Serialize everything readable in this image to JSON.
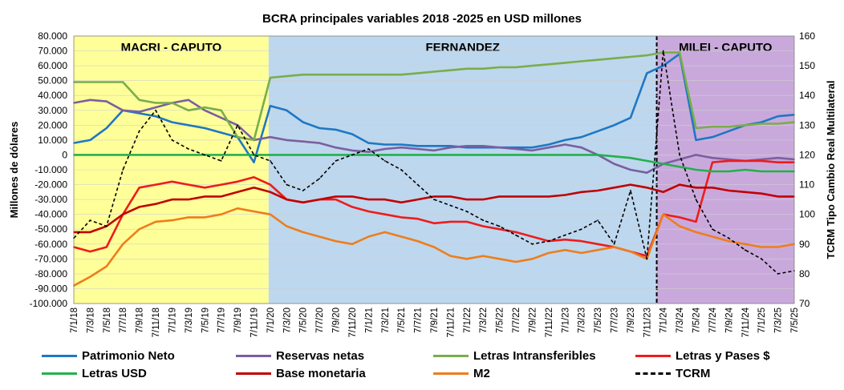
{
  "chart_data": {
    "type": "line",
    "title": "BCRA principales variables 2018 -2025 en USD millones",
    "ylabel": "Millones de dólares",
    "y2label": "TCRM Tipo Cambio Real Multilateral",
    "ylim": [
      -100000,
      80000
    ],
    "y2lim": [
      70,
      160
    ],
    "ytick_labels": [
      "80.000",
      "70.000",
      "60.000",
      "50.000",
      "40.000",
      "30.000",
      "20.000",
      "10.000",
      "0",
      "-10.000",
      "-20.000",
      "-30.000",
      "-40.000",
      "-50.000",
      "-60.000",
      "-70.000",
      "-80.000",
      "-90.000",
      "-100.000"
    ],
    "y2tick_labels": [
      "160",
      "150",
      "140",
      "130",
      "120",
      "110",
      "100",
      "90",
      "80",
      "70"
    ],
    "x": [
      "7/1/18",
      "7/3/18",
      "7/5/18",
      "7/7/18",
      "7/9/18",
      "7/11/18",
      "7/1/19",
      "7/3/19",
      "7/5/19",
      "7/7/19",
      "7/9/19",
      "7/11/19",
      "7/1/20",
      "7/3/20",
      "7/5/20",
      "7/7/20",
      "7/9/20",
      "7/11/20",
      "7/1/21",
      "7/3/21",
      "7/5/21",
      "7/7/21",
      "7/9/21",
      "7/11/21",
      "7/1/22",
      "7/3/22",
      "7/5/22",
      "7/7/22",
      "7/9/22",
      "7/11/22",
      "7/1/23",
      "7/3/23",
      "7/5/23",
      "7/7/23",
      "7/9/23",
      "7/11/23",
      "7/1/24",
      "7/3/24",
      "7/5/24",
      "7/7/24",
      "7/9/24",
      "7/11/24",
      "7/1/25",
      "7/3/25",
      "7/5/25"
    ],
    "periods": [
      {
        "label": "MACRI - CAPUTO",
        "start": 0,
        "end": 11.9,
        "color": "#ffff99"
      },
      {
        "label": "FERNANDEZ",
        "start": 11.9,
        "end": 35.6,
        "color": "#bdd7ee"
      },
      {
        "label": "MILEI - CAPUTO",
        "start": 35.6,
        "end": 44,
        "color": "#c9a9dc"
      }
    ],
    "series": [
      {
        "name": "Patrimonio Neto",
        "color": "#1f77c4",
        "axis": "left",
        "dashed": false,
        "values": [
          8000,
          10000,
          18000,
          30000,
          28000,
          26000,
          22000,
          20000,
          18000,
          15000,
          12000,
          -5000,
          33000,
          30000,
          22000,
          18000,
          17000,
          14000,
          8000,
          7000,
          7000,
          6000,
          6000,
          6000,
          5000,
          5000,
          5000,
          5000,
          5000,
          7000,
          10000,
          12000,
          16000,
          20000,
          25000,
          55000,
          60000,
          68000,
          10000,
          12000,
          16000,
          20000,
          22000,
          26000,
          27000
        ]
      },
      {
        "name": "Reservas netas",
        "color": "#7a5fa0",
        "axis": "left",
        "dashed": false,
        "values": [
          35000,
          37000,
          36000,
          30000,
          29000,
          32000,
          35000,
          37000,
          30000,
          25000,
          20000,
          10000,
          12000,
          10000,
          9000,
          8000,
          5000,
          3000,
          2000,
          4000,
          5000,
          4000,
          3000,
          5000,
          6000,
          6000,
          5000,
          4000,
          3000,
          5000,
          7000,
          5000,
          0,
          -6000,
          -10000,
          -12000,
          -6000,
          -3000,
          0,
          -2000,
          -3000,
          -4000,
          -3000,
          -2000,
          -3000
        ]
      },
      {
        "name": "Letras Intransferibles",
        "color": "#7aad4a",
        "axis": "left",
        "dashed": false,
        "values": [
          49000,
          49000,
          49000,
          49000,
          37000,
          35000,
          35000,
          30000,
          32000,
          30000,
          12000,
          10000,
          52000,
          53000,
          54000,
          54000,
          54000,
          54000,
          54000,
          54000,
          54000,
          55000,
          56000,
          57000,
          58000,
          58000,
          59000,
          59000,
          60000,
          61000,
          62000,
          63000,
          64000,
          65000,
          66000,
          67000,
          69000,
          69000,
          18000,
          19000,
          19000,
          20000,
          21000,
          21000,
          22000
        ]
      },
      {
        "name": "Letras y Pases $",
        "color": "#ee1c1c",
        "axis": "left",
        "dashed": false,
        "values": [
          -62000,
          -65000,
          -62000,
          -40000,
          -22000,
          -20000,
          -18000,
          -20000,
          -22000,
          -20000,
          -18000,
          -15000,
          -20000,
          -30000,
          -32000,
          -30000,
          -30000,
          -35000,
          -38000,
          -40000,
          -42000,
          -43000,
          -46000,
          -45000,
          -45000,
          -48000,
          -50000,
          -52000,
          -55000,
          -58000,
          -57000,
          -58000,
          -60000,
          -62000,
          -65000,
          -68000,
          -40000,
          -42000,
          -45000,
          -5000,
          -4000,
          -4000,
          -4000,
          -5000,
          -5000
        ]
      },
      {
        "name": "Letras USD",
        "color": "#22b14c",
        "axis": "left",
        "dashed": false,
        "values": [
          0,
          0,
          0,
          0,
          0,
          0,
          0,
          0,
          0,
          0,
          0,
          0,
          0,
          0,
          0,
          0,
          0,
          0,
          0,
          0,
          0,
          0,
          0,
          0,
          0,
          0,
          0,
          0,
          0,
          0,
          0,
          0,
          0,
          -1000,
          -2000,
          -4000,
          -6000,
          -8000,
          -10000,
          -11000,
          -11000,
          -10000,
          -11000,
          -11000,
          -11000
        ]
      },
      {
        "name": "Base monetaria",
        "color": "#c00000",
        "axis": "left",
        "dashed": false,
        "values": [
          -52000,
          -52000,
          -48000,
          -40000,
          -35000,
          -33000,
          -30000,
          -30000,
          -28000,
          -28000,
          -25000,
          -22000,
          -25000,
          -30000,
          -32000,
          -30000,
          -28000,
          -28000,
          -30000,
          -30000,
          -32000,
          -30000,
          -28000,
          -28000,
          -30000,
          -30000,
          -28000,
          -28000,
          -28000,
          -28000,
          -27000,
          -25000,
          -24000,
          -22000,
          -20000,
          -22000,
          -25000,
          -20000,
          -22000,
          -22000,
          -24000,
          -25000,
          -26000,
          -28000,
          -28000
        ]
      },
      {
        "name": "M2",
        "color": "#ee7d1c",
        "axis": "left",
        "dashed": false,
        "values": [
          -88000,
          -82000,
          -75000,
          -60000,
          -50000,
          -45000,
          -44000,
          -42000,
          -42000,
          -40000,
          -36000,
          -38000,
          -40000,
          -48000,
          -52000,
          -55000,
          -58000,
          -60000,
          -55000,
          -52000,
          -55000,
          -58000,
          -62000,
          -68000,
          -70000,
          -68000,
          -70000,
          -72000,
          -70000,
          -66000,
          -64000,
          -66000,
          -64000,
          -62000,
          -65000,
          -70000,
          -40000,
          -48000,
          -52000,
          -55000,
          -58000,
          -60000,
          -62000,
          -62000,
          -60000
        ]
      },
      {
        "name": "TCRM",
        "color": "#000000",
        "axis": "right",
        "dashed": true,
        "values": [
          92,
          98,
          96,
          115,
          128,
          135,
          125,
          122,
          120,
          118,
          130,
          120,
          118,
          110,
          108,
          112,
          118,
          120,
          122,
          118,
          115,
          110,
          105,
          103,
          101,
          98,
          96,
          93,
          90,
          91,
          93,
          95,
          98,
          90,
          108,
          85,
          155,
          120,
          105,
          95,
          92,
          88,
          85,
          80,
          81
        ]
      }
    ]
  }
}
